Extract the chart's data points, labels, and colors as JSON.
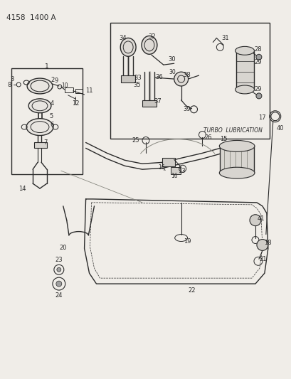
{
  "bg_color": "#f0ede8",
  "line_color": "#2a2a2a",
  "label_color": "#1a1a1a",
  "title": "4158  1400 A",
  "figsize": [
    4.1,
    5.33
  ],
  "dpi": 100,
  "turbo_text": "TURBO  LUBRICATION"
}
